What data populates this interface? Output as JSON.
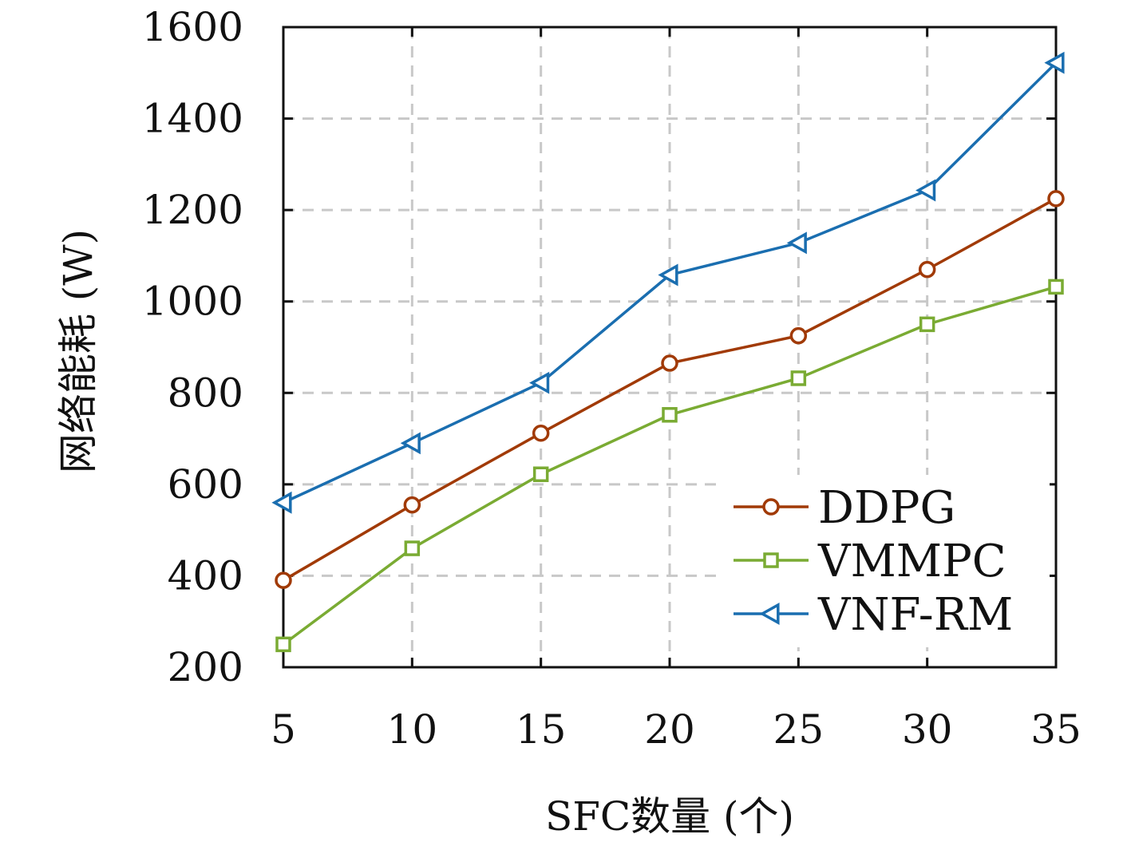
{
  "chart_data": {
    "type": "line",
    "x": [
      5,
      10,
      15,
      20,
      25,
      30,
      35
    ],
    "xlabel": "SFC数量 (个)",
    "ylabel": "网络能耗 (W)",
    "xlim": [
      5,
      35
    ],
    "ylim": [
      200,
      1600
    ],
    "xticks": [
      5,
      10,
      15,
      20,
      25,
      30,
      35
    ],
    "yticks": [
      200,
      400,
      600,
      800,
      1000,
      1200,
      1400,
      1600
    ],
    "grid": true,
    "legend_position": "bottom-right",
    "series": [
      {
        "name": "DDPG",
        "color": "#a13a06",
        "marker": "circle",
        "values": [
          390,
          555,
          712,
          865,
          925,
          1070,
          1225
        ]
      },
      {
        "name": "VMMPC",
        "color": "#7aab33",
        "marker": "square",
        "values": [
          250,
          460,
          622,
          752,
          832,
          950,
          1032
        ]
      },
      {
        "name": "VNF-RM",
        "color": "#1a6eb0",
        "marker": "triangle-left",
        "values": [
          560,
          690,
          822,
          1058,
          1128,
          1243,
          1522
        ]
      }
    ]
  }
}
